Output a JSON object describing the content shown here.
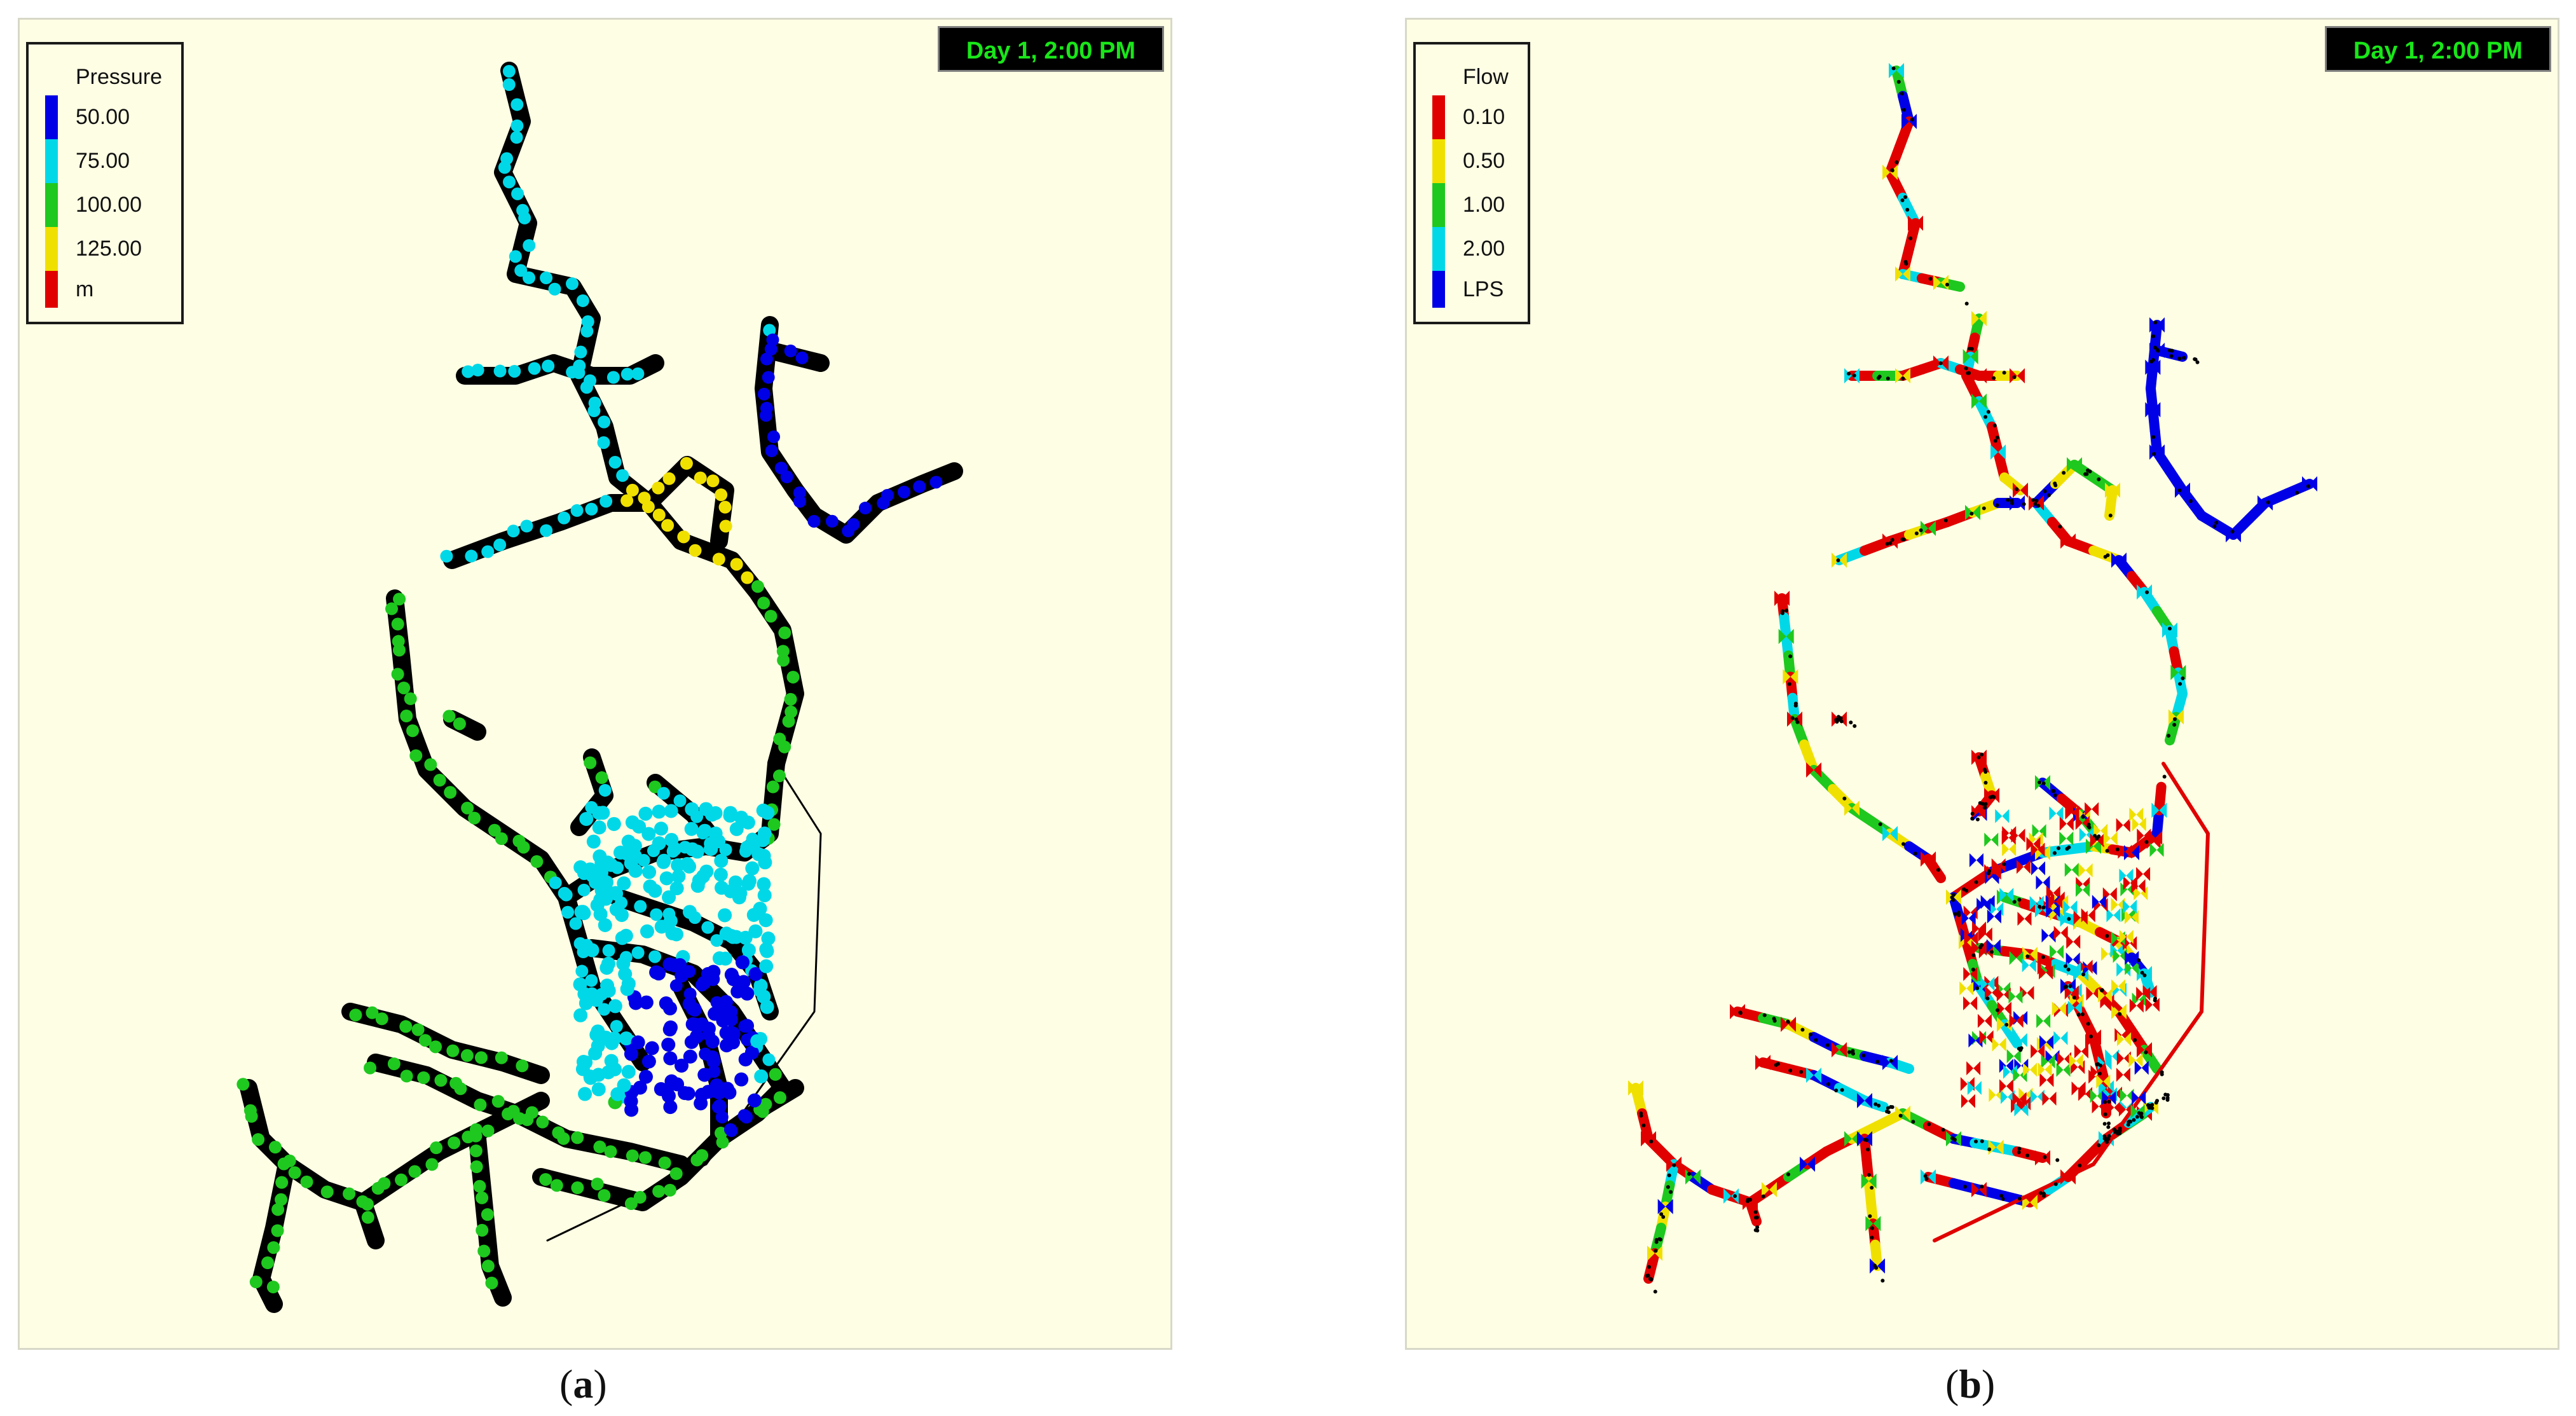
{
  "panel_a": {
    "timestamp": "Day 1, 2:00 PM",
    "legend": {
      "title": "Pressure",
      "values": [
        "50.00",
        "75.00",
        "100.00",
        "125.00"
      ],
      "unit": "m",
      "colors": [
        "#0000e6",
        "#00d8e8",
        "#1ec81e",
        "#f0e000",
        "#e00000"
      ]
    },
    "caption_open": "(",
    "caption_letter": "a",
    "caption_close": ")"
  },
  "panel_b": {
    "timestamp": "Day 1, 2:00 PM",
    "legend": {
      "title": "Flow",
      "values": [
        "0.10",
        "0.50",
        "1.00",
        "2.00"
      ],
      "unit": "LPS",
      "colors": [
        "#e00000",
        "#f0e000",
        "#1ec81e",
        "#00d8e8",
        "#0000e6"
      ]
    },
    "caption_open": "(",
    "caption_letter": "b",
    "caption_close": ")"
  }
}
